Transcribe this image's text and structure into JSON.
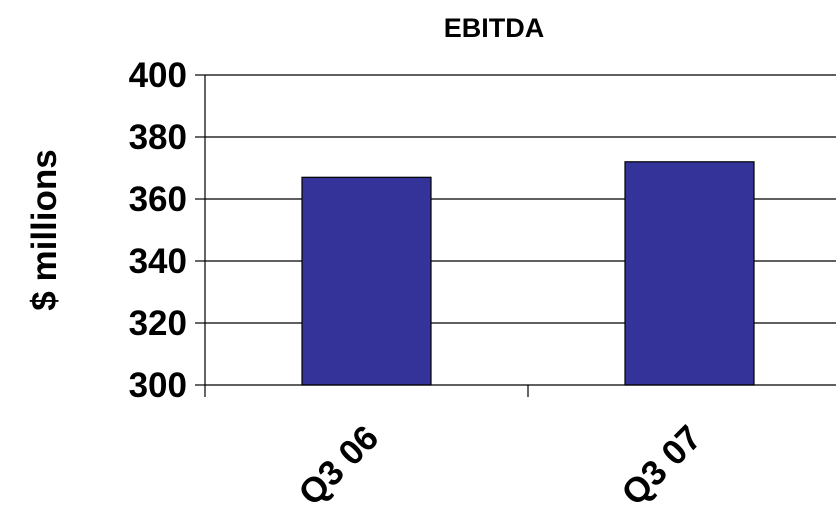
{
  "chart_data": {
    "type": "bar",
    "title": "EBITDA",
    "xlabel": "",
    "ylabel": "$ millions",
    "categories": [
      "Q3 06",
      "Q3 07"
    ],
    "values": [
      367,
      372
    ],
    "ylim": [
      300,
      400
    ],
    "yticks": [
      300,
      320,
      340,
      360,
      380,
      400
    ],
    "grid": true,
    "legend": "none",
    "colors": {
      "bar": "#333399",
      "bar_outline": "#000000",
      "grid": "#000000"
    }
  }
}
